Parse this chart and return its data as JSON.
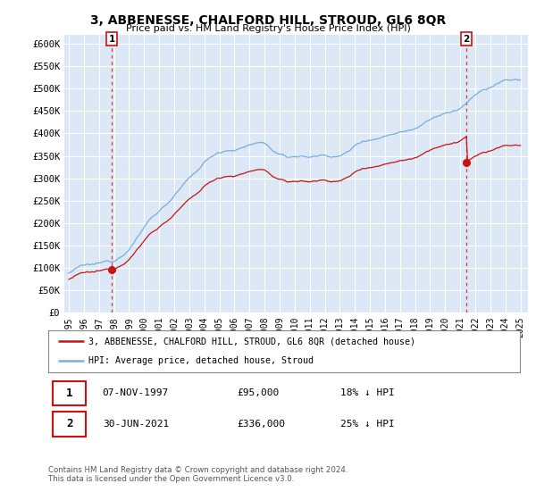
{
  "title": "3, ABBENESSE, CHALFORD HILL, STROUD, GL6 8QR",
  "subtitle": "Price paid vs. HM Land Registry's House Price Index (HPI)",
  "ylim": [
    0,
    620000
  ],
  "yticks": [
    0,
    50000,
    100000,
    150000,
    200000,
    250000,
    300000,
    350000,
    400000,
    450000,
    500000,
    550000,
    600000
  ],
  "legend_line1": "3, ABBENESSE, CHALFORD HILL, STROUD, GL6 8QR (detached house)",
  "legend_line2": "HPI: Average price, detached house, Stroud",
  "annotation1": {
    "label": "1",
    "date": "07-NOV-1997",
    "price": "£95,000",
    "hpi": "18% ↓ HPI"
  },
  "annotation2": {
    "label": "2",
    "date": "30-JUN-2021",
    "price": "£336,000",
    "hpi": "25% ↓ HPI"
  },
  "footer": "Contains HM Land Registry data © Crown copyright and database right 2024.\nThis data is licensed under the Open Government Licence v3.0.",
  "background_color": "#ffffff",
  "plot_bg_color": "#dce8f5",
  "grid_color": "#ffffff",
  "hpi_color": "#7aaddd",
  "price_color": "#cc1111",
  "annotation_color": "#cc1111",
  "sale1_year": 1997.85,
  "sale1_price": 95000,
  "sale2_year": 2021.42,
  "sale2_price": 336000
}
